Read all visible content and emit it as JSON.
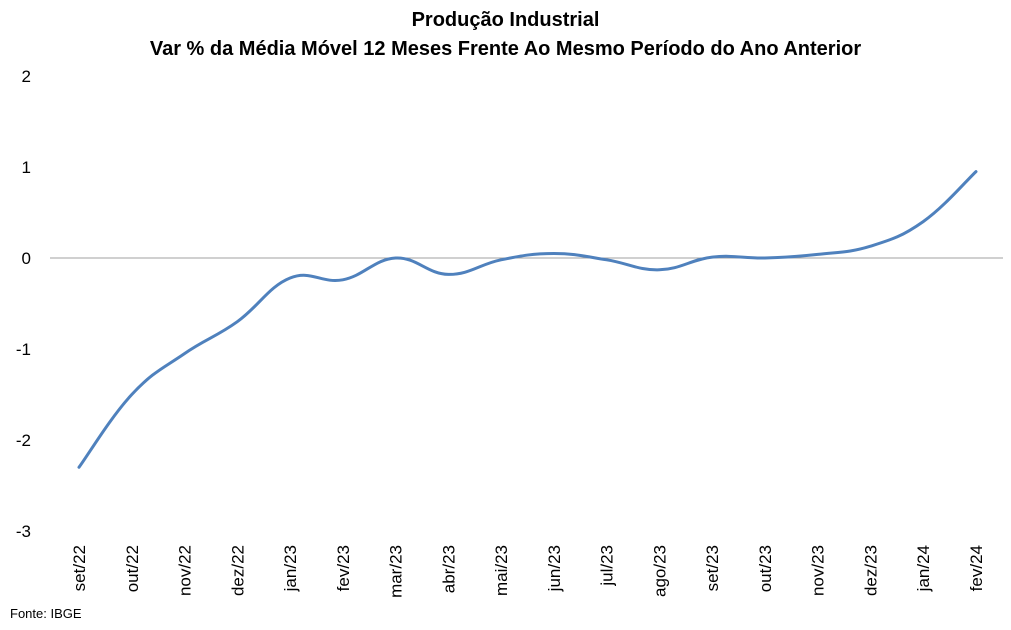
{
  "chart_data": {
    "type": "line",
    "title": "Produção Industrial",
    "subtitle": "Var % da Média Móvel 12 Meses Frente Ao Mesmo Período do Ano Anterior",
    "xlabel": "",
    "ylabel": "",
    "categories": [
      "set/22",
      "out/22",
      "nov/22",
      "dez/22",
      "jan/23",
      "fev/23",
      "mar/23",
      "abr/23",
      "mai/23",
      "jun/23",
      "jul/23",
      "ago/23",
      "set/23",
      "out/23",
      "nov/23",
      "dez/23",
      "jan/24",
      "fev/24"
    ],
    "series": [
      {
        "values": [
          -2.3,
          -1.5,
          -1.05,
          -0.7,
          -0.22,
          -0.24,
          0.0,
          -0.18,
          -0.02,
          0.05,
          -0.02,
          -0.13,
          0.01,
          0.0,
          0.04,
          0.13,
          0.4,
          0.95
        ]
      }
    ],
    "ylim": [
      -3,
      2
    ],
    "yticks": [
      2,
      1,
      0,
      -1,
      -2,
      -3
    ],
    "grid": false,
    "zero_line": true,
    "line_color": "#4f81bd",
    "zero_line_color": "#a0a0a0"
  },
  "source": "Fonte: IBGE"
}
